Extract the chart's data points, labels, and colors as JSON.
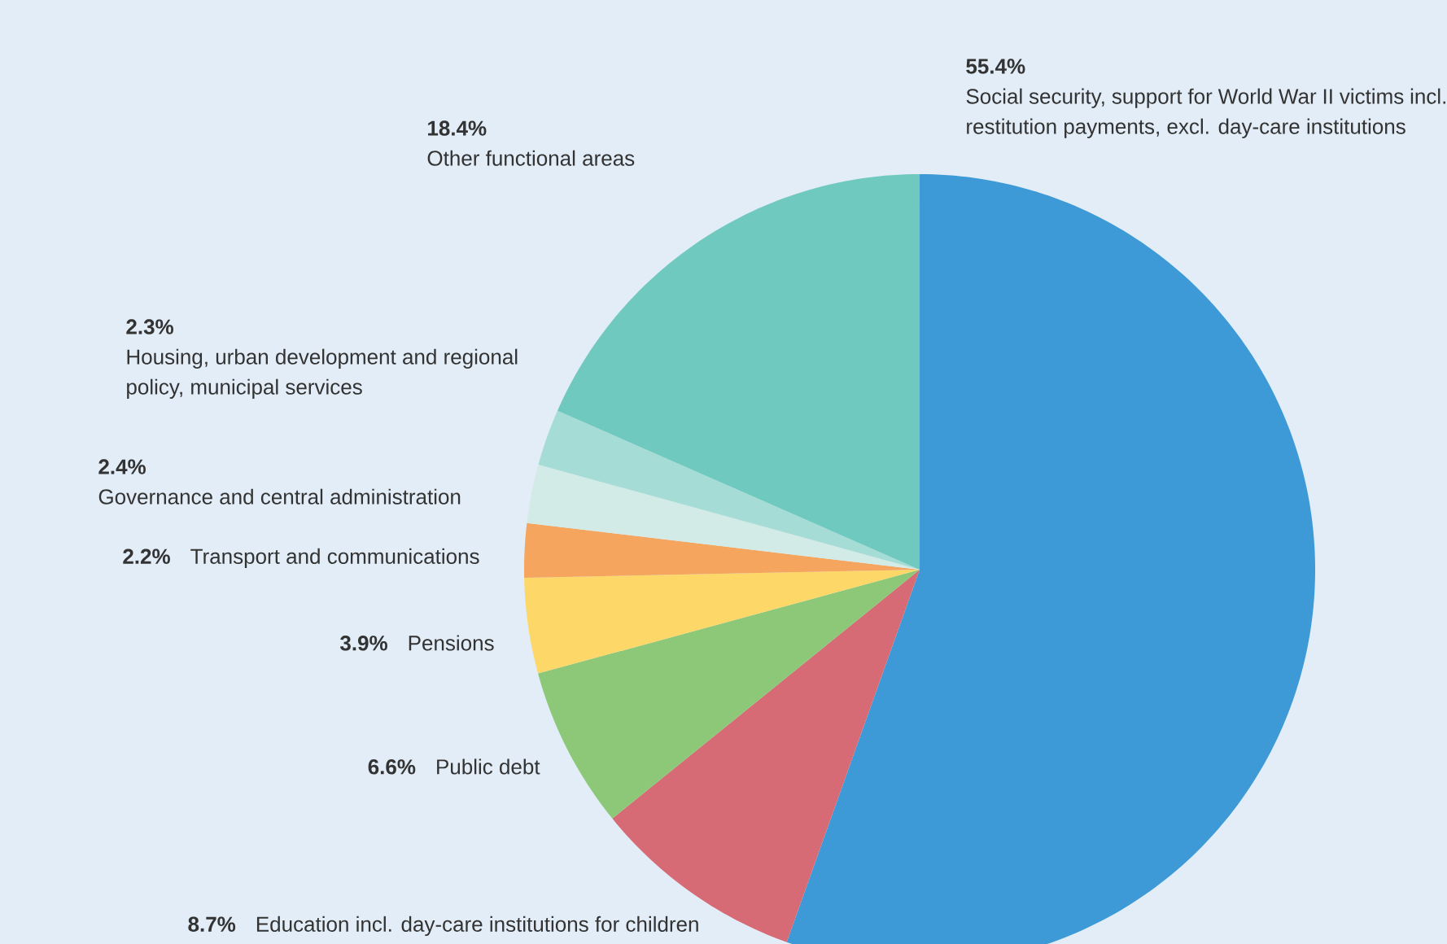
{
  "chart_data": {
    "type": "pie",
    "categories": [
      "Social security, support for World War II victims incl. restitution payments, excl. day-care institutions",
      "Education incl. day-care institutions for children",
      "Public debt",
      "Pensions",
      "Transport and communications",
      "Governance and central administration",
      "Housing, urban development and regional policy, municipal services",
      "Other functional areas"
    ],
    "values": [
      55.4,
      8.7,
      6.6,
      3.9,
      2.2,
      2.4,
      2.3,
      18.4
    ],
    "value_labels": [
      "55.4%",
      "8.7%",
      "6.6%",
      "3.9%",
      "2.2%",
      "2.4%",
      "2.3%",
      "18.4%"
    ],
    "colors": [
      "#3d9ad6",
      "#d66b76",
      "#8cc877",
      "#fdd868",
      "#f5a55d",
      "#d3ebe6",
      "#a6dcd6",
      "#6fc9bf"
    ]
  }
}
